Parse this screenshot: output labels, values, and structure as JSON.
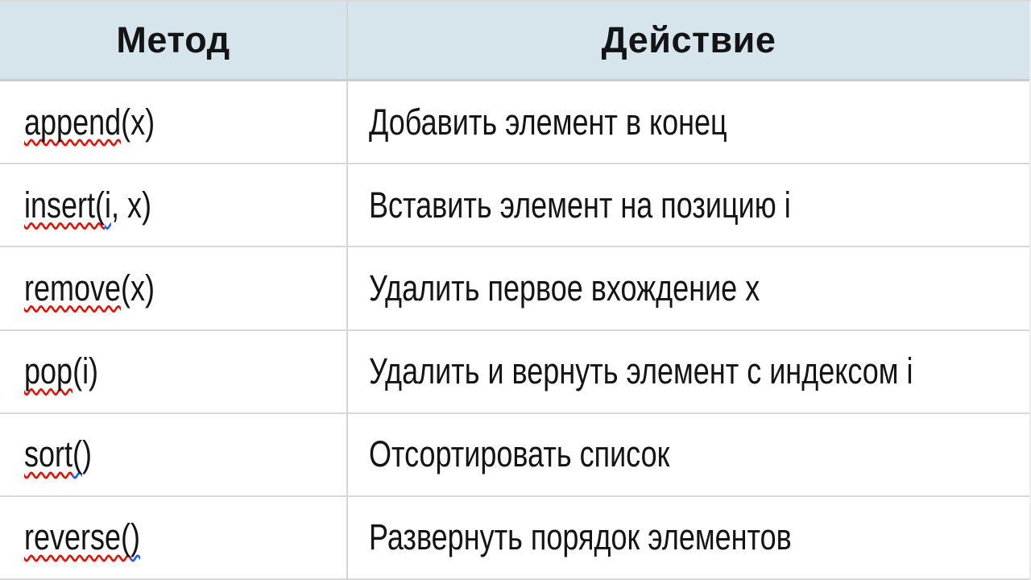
{
  "colors": {
    "header_background": "#d6e5ec",
    "border_gray": "#d8d8d8",
    "text": "#141414",
    "spellcheck_red": "#e01408",
    "grammar_blue": "#1f5bff"
  },
  "table": {
    "headers": [
      {
        "label": "Метод"
      },
      {
        "label": "Действие"
      }
    ],
    "rows": [
      {
        "method": {
          "red": "append",
          "blue": "",
          "rest": "(x)"
        },
        "action": "Добавить элемент в конец"
      },
      {
        "method": {
          "red": "insert(",
          "blue": "i",
          "rest": ", x)"
        },
        "action": "Вставить элемент на позицию i"
      },
      {
        "method": {
          "red": "remove",
          "blue": "",
          "rest": "(x)"
        },
        "action": "Удалить первое вхождение x"
      },
      {
        "method": {
          "red": "pop",
          "blue": "",
          "rest": "(i)"
        },
        "action": "Удалить и вернуть элемент с индексом i"
      },
      {
        "method": {
          "red": "sort",
          "blue": "(",
          "rest": ")"
        },
        "action": "Отсортировать список"
      },
      {
        "method": {
          "red": "reverse(",
          "blue": ")",
          "rest": ""
        },
        "action": "Развернуть порядок элементов"
      }
    ]
  }
}
